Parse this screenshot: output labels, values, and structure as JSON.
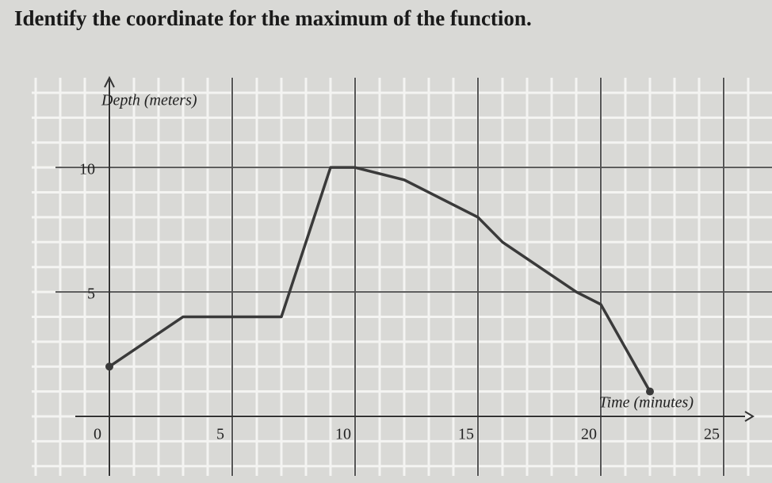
{
  "question": "Identify the coordinate for the maximum of the function.",
  "chart_data": {
    "type": "line",
    "x_label": "Time (minutes)",
    "y_label": "Depth (meters)",
    "x": [
      0,
      3,
      7,
      9,
      10,
      12,
      15,
      16,
      19,
      20,
      22
    ],
    "values": [
      2,
      4,
      4,
      10,
      10,
      9.5,
      8,
      7,
      5,
      4.5,
      1
    ],
    "color": "#3a3a3a",
    "xlim": [
      0,
      26
    ],
    "ylim": [
      0,
      13
    ],
    "xticks": [
      0,
      5,
      10,
      15,
      20,
      25
    ],
    "yticks": [
      5,
      10
    ],
    "grid": true
  }
}
